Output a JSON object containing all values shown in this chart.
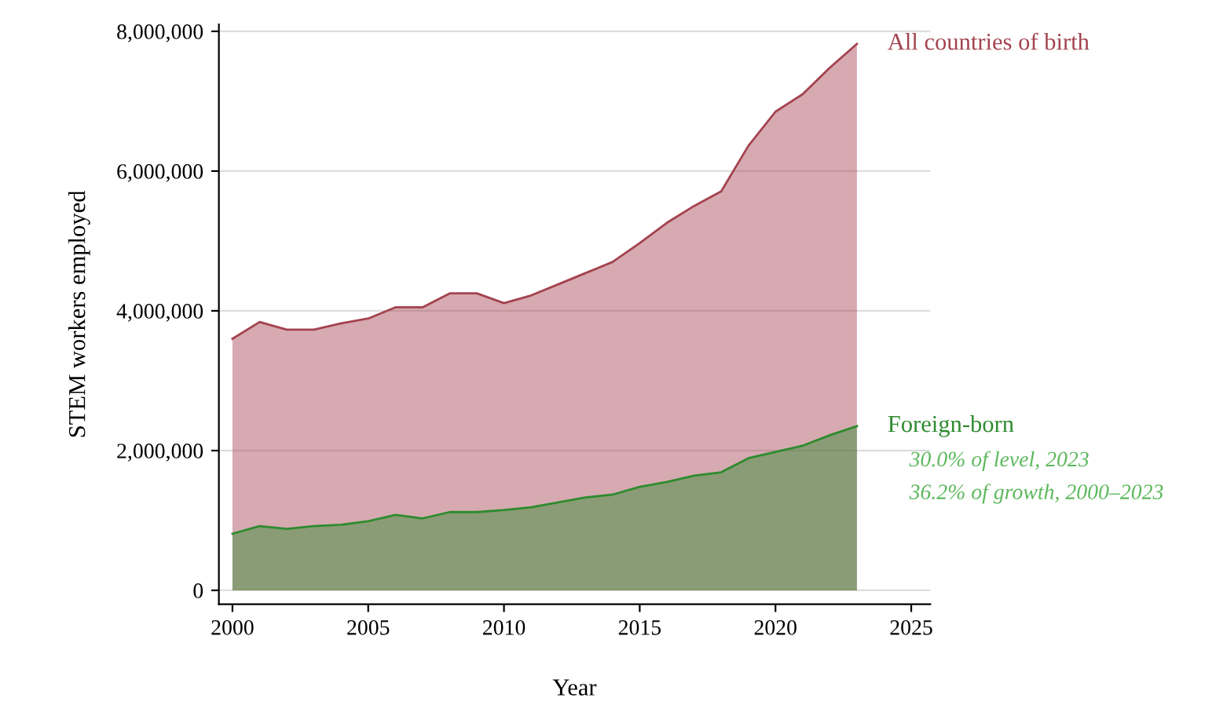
{
  "chart_data": {
    "type": "area",
    "xlabel": "Year",
    "ylabel": "STEM workers employed",
    "x": [
      2000,
      2001,
      2002,
      2003,
      2004,
      2005,
      2006,
      2007,
      2008,
      2009,
      2010,
      2011,
      2012,
      2013,
      2014,
      2015,
      2016,
      2017,
      2018,
      2019,
      2020,
      2021,
      2022,
      2023
    ],
    "series": [
      {
        "name": "All countries of birth",
        "color": "#a3434f",
        "values": [
          3600000,
          3840000,
          3730000,
          3730000,
          3820000,
          3890000,
          4050000,
          4050000,
          4250000,
          4250000,
          4110000,
          4220000,
          4380000,
          4540000,
          4700000,
          4970000,
          5260000,
          5500000,
          5710000,
          6360000,
          6850000,
          7100000,
          7480000,
          7820000
        ]
      },
      {
        "name": "Foreign-born",
        "color": "#2e8b2e",
        "values": [
          810000,
          920000,
          880000,
          920000,
          940000,
          990000,
          1080000,
          1030000,
          1120000,
          1120000,
          1150000,
          1190000,
          1260000,
          1330000,
          1370000,
          1480000,
          1550000,
          1640000,
          1690000,
          1890000,
          1980000,
          2070000,
          2220000,
          2350000
        ]
      }
    ],
    "annotations": [
      "30.0% of level, 2023",
      "36.2% of growth, 2000–2023"
    ],
    "xlim": [
      1999.5,
      2025.7
    ],
    "xticks": [
      2000,
      2005,
      2010,
      2015,
      2020,
      2025
    ],
    "ylim": [
      -200000,
      8100000
    ],
    "yticks": [
      {
        "value": 0,
        "label": "0"
      },
      {
        "value": 2000000,
        "label": "2,000,000"
      },
      {
        "value": 4000000,
        "label": "4,000,000"
      },
      {
        "value": 6000000,
        "label": "6,000,000"
      },
      {
        "value": 8000000,
        "label": "8,000,000"
      }
    ],
    "grid": "y"
  }
}
